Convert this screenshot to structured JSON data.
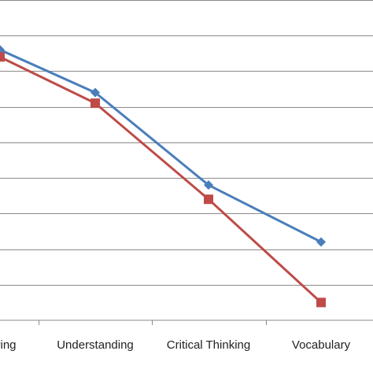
{
  "chart_data": {
    "type": "line",
    "categories": [
      "ring",
      "Understanding",
      "Critical Thinking",
      "Vocabulary"
    ],
    "series": [
      {
        "values": [
          7.6,
          6.4,
          3.8,
          2.2
        ],
        "color": "#4A7EBB",
        "marker": "diamond"
      },
      {
        "values": [
          7.4,
          6.1,
          3.4,
          0.5
        ],
        "color": "#BE4B48",
        "marker": "square"
      }
    ],
    "ylim": [
      0,
      9
    ],
    "grid": true,
    "legend": "none"
  }
}
